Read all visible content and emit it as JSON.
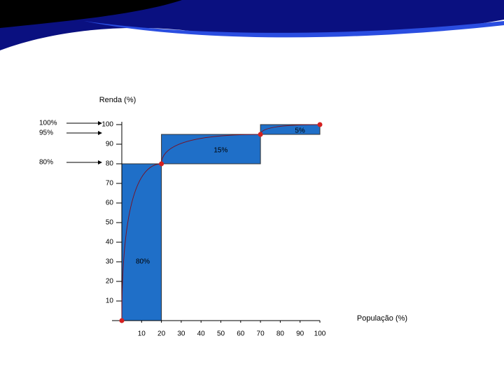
{
  "chart_data": {
    "type": "step-area",
    "y_label": "Renda (%)",
    "x_label": "População (%)",
    "xlim": [
      0,
      100
    ],
    "ylim": [
      0,
      100
    ],
    "xticks": [
      10,
      20,
      30,
      40,
      50,
      60,
      70,
      80,
      90,
      100
    ],
    "yticks": [
      10,
      20,
      30,
      40,
      50,
      60,
      70,
      80,
      90,
      100
    ],
    "color": "#1f6fc8",
    "steps": {
      "x_starts": [
        0,
        20,
        70
      ],
      "x_ends": [
        20,
        70,
        100
      ],
      "lows": [
        0,
        80,
        95
      ],
      "highs": [
        80,
        95,
        100
      ],
      "labels": [
        "80%",
        "15%",
        "5%"
      ]
    },
    "curve": {
      "x": [
        0,
        20,
        70,
        100
      ],
      "values": [
        0,
        80,
        95,
        100
      ],
      "color": "#d42020"
    },
    "annotations": [
      {
        "label": "100%",
        "value": 100
      },
      {
        "label": "95%",
        "value": 95
      },
      {
        "label": "80%",
        "value": 80
      }
    ]
  }
}
